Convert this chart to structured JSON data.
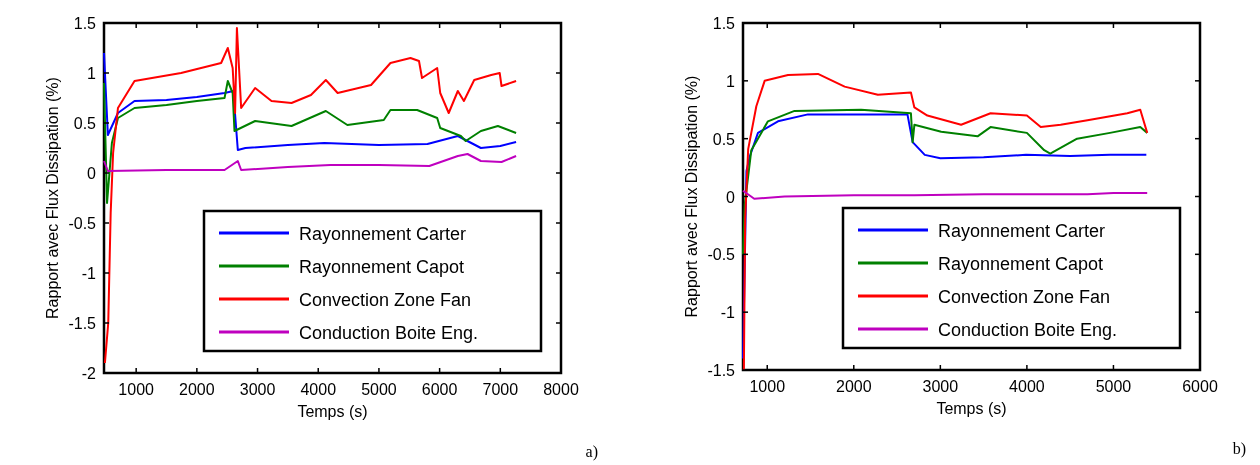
{
  "chart_data": [
    {
      "type": "line",
      "xlabel": "Temps (s)",
      "ylabel": "Rapport avec Flux Dissipation (%)",
      "annotations": [
        "a)"
      ],
      "xlim": [
        470,
        8000
      ],
      "xticks": [
        1000,
        2000,
        3000,
        4000,
        5000,
        6000,
        7000,
        8000
      ],
      "ylim": [
        -2,
        1.5
      ],
      "yticks": [
        -2,
        -1.5,
        -1,
        -0.5,
        0,
        0.5,
        1,
        1.5
      ],
      "grid": false,
      "legend": "bottom right",
      "line_style": "solid",
      "series": [
        {
          "name": "Rayonnement Carter",
          "color": "#0000ff",
          "x": [
            470,
            534,
            700,
            973,
            1500,
            2000,
            2456,
            2600,
            2675,
            2800,
            3500,
            4100,
            5000,
            5800,
            6300,
            6680,
            7000,
            7260
          ],
          "values": [
            1.2,
            0.38,
            0.6,
            0.72,
            0.73,
            0.76,
            0.8,
            0.82,
            0.23,
            0.25,
            0.28,
            0.3,
            0.28,
            0.29,
            0.37,
            0.25,
            0.27,
            0.31
          ]
        },
        {
          "name": "Rayonnement Capot",
          "color": "#008000",
          "x": [
            470,
            520,
            600,
            700,
            973,
            1500,
            2000,
            2456,
            2510,
            2590,
            2620,
            2960,
            3560,
            4125,
            4480,
            5080,
            5190,
            5630,
            5960,
            6010,
            6350,
            6430,
            6680,
            6960,
            7260
          ],
          "values": [
            0.9,
            -0.3,
            0.3,
            0.55,
            0.65,
            0.68,
            0.72,
            0.75,
            0.92,
            0.8,
            0.42,
            0.52,
            0.47,
            0.62,
            0.48,
            0.53,
            0.63,
            0.63,
            0.55,
            0.45,
            0.37,
            0.32,
            0.42,
            0.47,
            0.4
          ]
        },
        {
          "name": "Convection Zone Fan",
          "color": "#ff0000",
          "x": [
            485,
            540,
            580,
            620,
            700,
            973,
            1740,
            2400,
            2510,
            2590,
            2630,
            2660,
            2730,
            2960,
            3230,
            3560,
            3880,
            4125,
            4320,
            4870,
            5190,
            5520,
            5660,
            5710,
            5960,
            6010,
            6150,
            6300,
            6400,
            6570,
            6850,
            6990,
            7020,
            7260
          ],
          "values": [
            -1.9,
            -1.5,
            -0.4,
            0.2,
            0.65,
            0.92,
            1.0,
            1.1,
            1.25,
            1.05,
            0.6,
            1.45,
            0.65,
            0.85,
            0.72,
            0.7,
            0.78,
            0.93,
            0.8,
            0.88,
            1.1,
            1.15,
            1.12,
            0.95,
            1.05,
            0.8,
            0.6,
            0.82,
            0.72,
            0.93,
            0.98,
            1.0,
            0.87,
            0.92
          ]
        },
        {
          "name": "Conduction Boite Eng.",
          "color": "#bf00bf",
          "x": [
            470,
            534,
            1500,
            2456,
            2675,
            2730,
            3500,
            4200,
            5000,
            5830,
            6300,
            6460,
            6680,
            7020,
            7260
          ],
          "values": [
            0.12,
            0.02,
            0.03,
            0.03,
            0.12,
            0.03,
            0.06,
            0.08,
            0.08,
            0.07,
            0.17,
            0.19,
            0.12,
            0.11,
            0.17
          ]
        }
      ]
    },
    {
      "type": "line",
      "xlabel": "Temps (s)",
      "ylabel": "Rapport avec Flux Dissipation (%)",
      "annotations": [
        "b)"
      ],
      "xlim": [
        720,
        6000
      ],
      "xticks": [
        1000,
        2000,
        3000,
        4000,
        5000,
        6000
      ],
      "ylim": [
        -1.5,
        1.5
      ],
      "yticks": [
        -1.5,
        -1,
        -0.5,
        0,
        0.5,
        1,
        1.5
      ],
      "grid": false,
      "legend": "bottom right",
      "line_style": "solid",
      "series": [
        {
          "name": "Rayonnement Carter",
          "color": "#0000ff",
          "x": [
            720,
            760,
            800,
            893,
            1124,
            1470,
            2000,
            2620,
            2680,
            2820,
            3000,
            3500,
            3990,
            4500,
            4960,
            5380
          ],
          "values": [
            -1.4,
            0.22,
            0.35,
            0.55,
            0.65,
            0.71,
            0.71,
            0.71,
            0.47,
            0.36,
            0.33,
            0.34,
            0.36,
            0.35,
            0.36,
            0.36
          ]
        },
        {
          "name": "Rayonnement Capot",
          "color": "#008000",
          "x": [
            720,
            740,
            816,
            1008,
            1315,
            2084,
            2660,
            2680,
            2700,
            3010,
            3430,
            3580,
            4000,
            4200,
            4270,
            4580,
            4960,
            5310,
            5390
          ],
          "values": [
            -0.5,
            -0.07,
            0.4,
            0.65,
            0.74,
            0.75,
            0.72,
            0.47,
            0.62,
            0.56,
            0.52,
            0.6,
            0.55,
            0.4,
            0.37,
            0.5,
            0.55,
            0.6,
            0.55
          ]
        },
        {
          "name": "Convection Zone Fan",
          "color": "#ff0000",
          "x": [
            730,
            745,
            780,
            874,
            970,
            1240,
            1586,
            1894,
            2278,
            2660,
            2700,
            2850,
            3240,
            3580,
            4000,
            4160,
            4390,
            4700,
            5160,
            5310,
            5390
          ],
          "values": [
            -1.5,
            -0.19,
            0.41,
            0.78,
            1.0,
            1.05,
            1.06,
            0.95,
            0.88,
            0.9,
            0.77,
            0.7,
            0.62,
            0.72,
            0.7,
            0.6,
            0.62,
            0.66,
            0.72,
            0.75,
            0.55
          ]
        },
        {
          "name": "Conduction Boite Eng.",
          "color": "#bf00bf",
          "x": [
            720,
            850,
            1200,
            2000,
            2700,
            3500,
            4700,
            5000,
            5390
          ],
          "values": [
            0.05,
            -0.02,
            0.0,
            0.01,
            0.01,
            0.02,
            0.02,
            0.03,
            0.03
          ]
        }
      ]
    }
  ]
}
